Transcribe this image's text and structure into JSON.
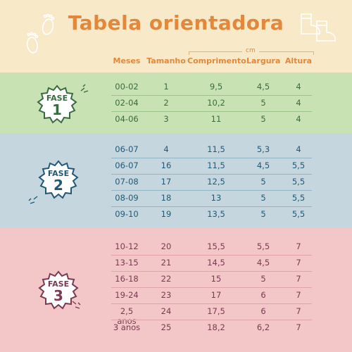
{
  "title": "Tabela orientadora",
  "unit_label": "cm",
  "columns": [
    "Meses",
    "Tamanho",
    "Comprimento",
    "Largura",
    "Altura"
  ],
  "colors": {
    "title": "#e3883a",
    "phase1": "#3a6b40",
    "phase2": "#1e5a78",
    "phase3": "#7a3a52"
  },
  "phases": [
    {
      "label": "FASE",
      "number": "1",
      "rows": [
        [
          "00-02",
          "1",
          "9,5",
          "4,5",
          "4"
        ],
        [
          "02-04",
          "2",
          "10,2",
          "5",
          "4"
        ],
        [
          "04-06",
          "3",
          "11",
          "5",
          "4"
        ]
      ]
    },
    {
      "label": "FASE",
      "number": "2",
      "rows": [
        [
          "06-07",
          "4",
          "11,5",
          "5,3",
          "4"
        ],
        [
          "06-07",
          "16",
          "11,5",
          "4,5",
          "5,5"
        ],
        [
          "07-08",
          "17",
          "12,5",
          "5",
          "5,5"
        ],
        [
          "08-09",
          "18",
          "13",
          "5",
          "5,5"
        ],
        [
          "09-10",
          "19",
          "13,5",
          "5",
          "5,5"
        ]
      ]
    },
    {
      "label": "FASE",
      "number": "3",
      "rows": [
        [
          "10-12",
          "20",
          "15,5",
          "5,5",
          "7"
        ],
        [
          "13-15",
          "21",
          "14,5",
          "4,5",
          "7"
        ],
        [
          "16-18",
          "22",
          "15",
          "5",
          "7"
        ],
        [
          "19-24",
          "23",
          "17",
          "6",
          "7"
        ],
        [
          "2,5 anos",
          "24",
          "17,5",
          "6",
          "7"
        ],
        [
          "3 anos",
          "25",
          "18,2",
          "6,2",
          "7"
        ]
      ]
    }
  ],
  "icons": {
    "top_left": "baby-feet-icon",
    "top_right": "baby-booties-icon"
  }
}
